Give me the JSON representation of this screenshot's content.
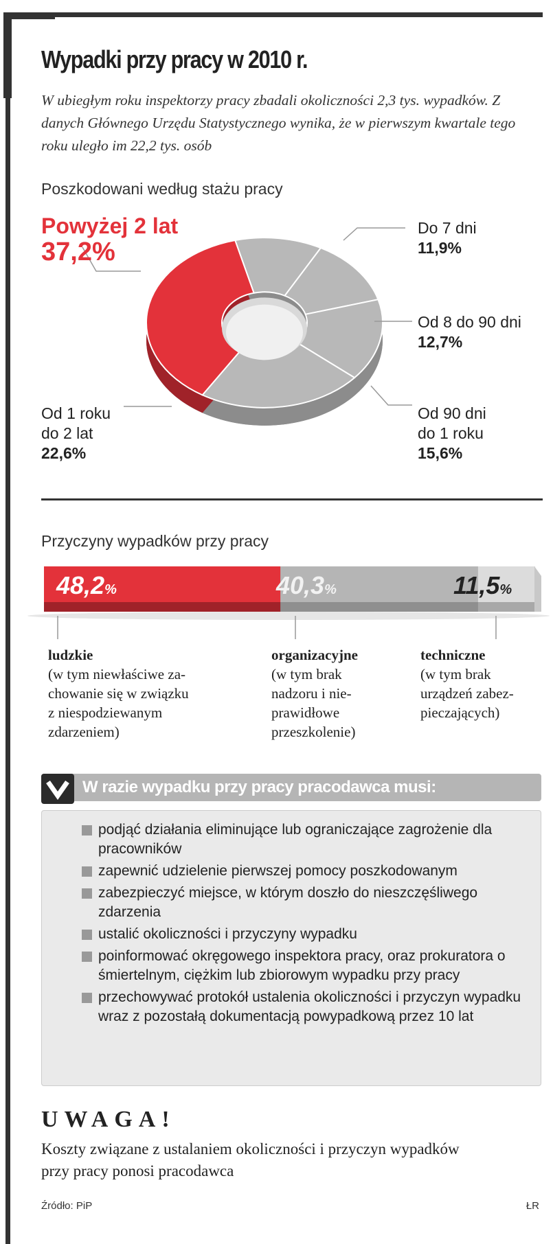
{
  "title": "Wypadki przy pracy w 2010 r.",
  "lead": "W ubiegłym roku inspektorzy pracy zbadali okoliczności 2,3 tys. wypadków. Z danych Głównego Urzędu Statystycznego wynika, że w pierwszym kwartale tego roku uległo im 22,2 tys. osób",
  "chart_data": [
    {
      "type": "pie",
      "title": "Poszkodowani według stażu pracy",
      "labels": [
        "Do 7 dni",
        "Od 8 do 90 dni",
        "Od 90 dni do 1 roku",
        "Od 1 roku do 2 lat",
        "Powyżej 2 lat"
      ],
      "label_lines": [
        [
          "Do 7 dni"
        ],
        [
          "Od 8 do 90 dni"
        ],
        [
          "Od 90 dni",
          "do 1 roku"
        ],
        [
          "Od 1 roku",
          "do 2 lat"
        ],
        [
          "Powyżej 2 lat"
        ]
      ],
      "values": [
        11.9,
        12.7,
        15.6,
        22.6,
        37.2
      ],
      "value_labels": [
        "11,9%",
        "12,7%",
        "15,6%",
        "22,6%",
        "37,2%"
      ],
      "colors": [
        "#b8b8b8",
        "#b8b8b8",
        "#b8b8b8",
        "#b8b8b8",
        "#e3323a"
      ]
    },
    {
      "type": "bar",
      "stacked": true,
      "title": "Przyczyny wypadków przy pracy",
      "categories": [
        "ludzkie",
        "organizacyjne",
        "techniczne"
      ],
      "values": [
        48.2,
        40.3,
        11.5
      ],
      "value_labels": [
        "48,2",
        "40,3",
        "11,5"
      ],
      "unit": "%",
      "descriptions": [
        [
          "(w tym niewłaściwe za-",
          "chowanie się w związku",
          "z niespodziewanym",
          "zdarzeniem)"
        ],
        [
          "(w tym brak",
          "nadzoru i nie-",
          "prawidłowe",
          "przeszkolenie)"
        ],
        [
          "(w tym brak",
          "urządzeń zabez-",
          "pieczających)"
        ]
      ],
      "colors": [
        "#e3323a",
        "#b5b5b5",
        "#dcdcdc"
      ]
    }
  ],
  "box": {
    "title": "W razie wypadku przy pracy pracodawca musi:",
    "items": [
      "podjąć działania eliminujące lub ograniczające zagrożenie dla pracowników",
      "zapewnić udzielenie pierwszej pomocy poszkodowanym",
      "zabezpieczyć miejsce, w którym doszło do nieszczęśliwego zdarzenia",
      "ustalić okoliczności i przyczyny wypadku",
      "poinformować okręgowego inspektora pracy, oraz prokuratora o śmiertelnym, ciężkim lub zbiorowym wypadku przy pracy",
      "przechowywać protokół ustalenia okoliczności i przyczyn wypadku wraz z pozostałą dokumentacją powypadkową przez 10 lat"
    ]
  },
  "uwaga": {
    "heading": "UWAGA!",
    "text": "Koszty związane z ustalaniem okoliczności i przyczyn wypadków przy pracy ponosi pracodawca"
  },
  "source": "Źródło: PiP",
  "credit": "ŁR"
}
